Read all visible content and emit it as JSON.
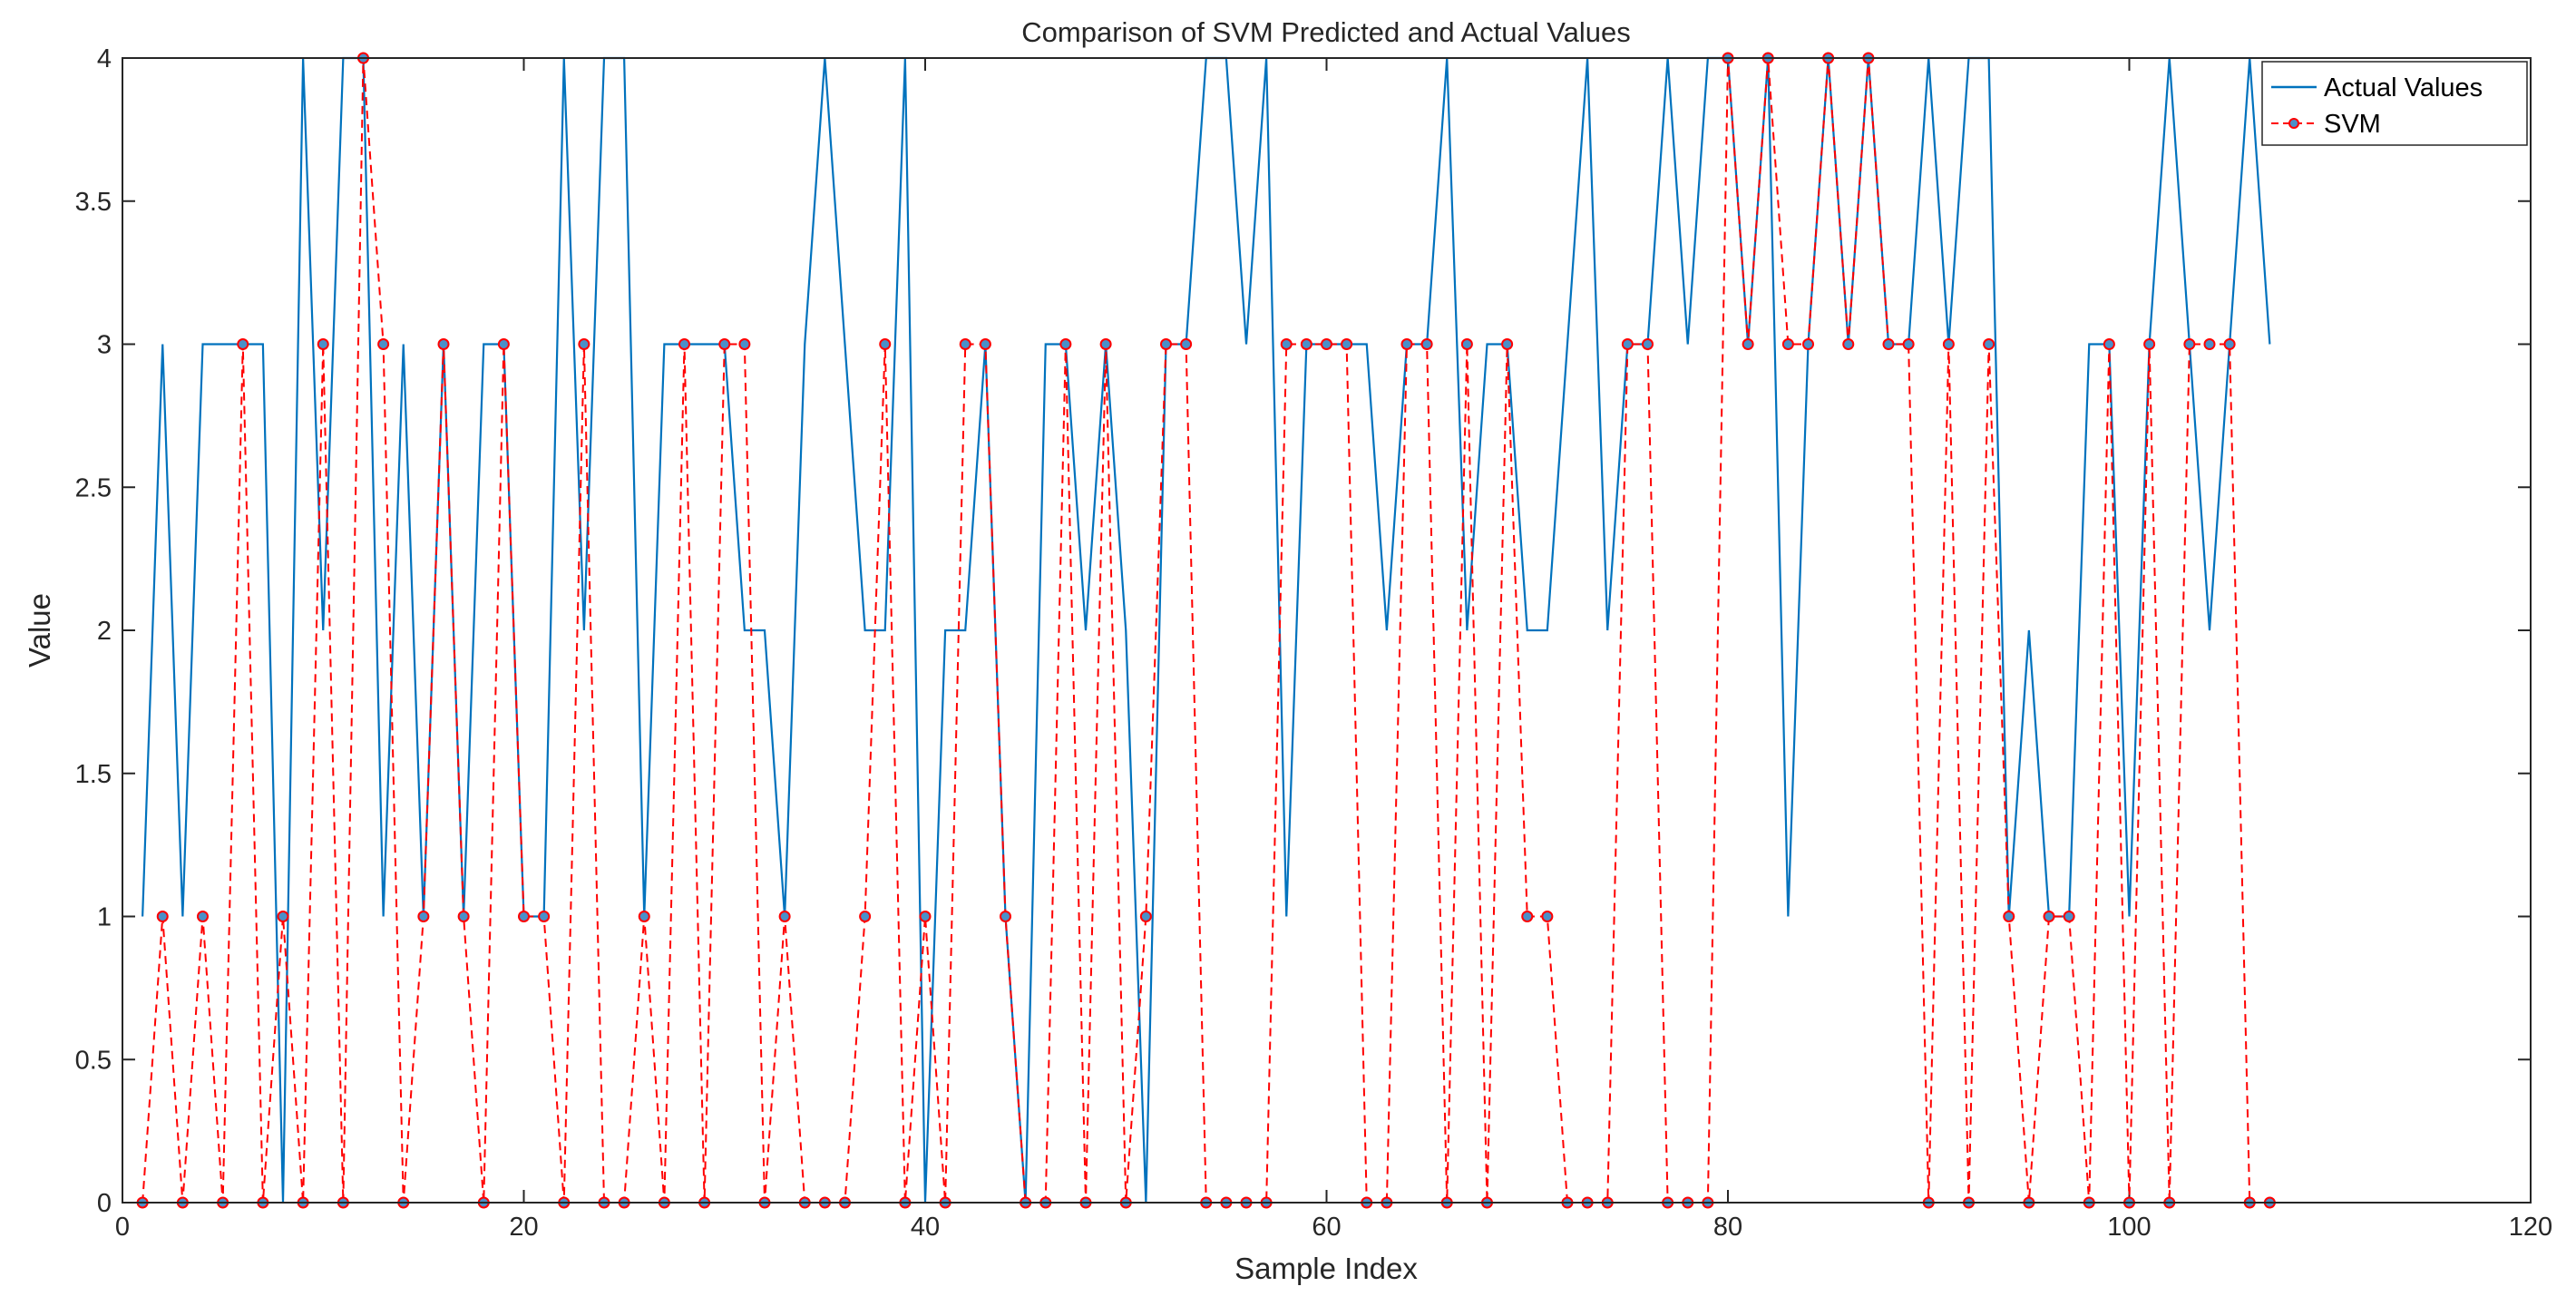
{
  "chart_data": {
    "type": "line",
    "title": "Comparison of SVM Predicted and Actual Values",
    "xlabel": "Sample Index",
    "ylabel": "Value",
    "xlim": [
      0,
      120
    ],
    "ylim": [
      0,
      4
    ],
    "x_ticks": [
      0,
      20,
      40,
      60,
      80,
      100,
      120
    ],
    "x_tick_labels": [
      "0",
      "20",
      "40",
      "60",
      "80",
      "100",
      "120"
    ],
    "y_ticks": [
      0,
      0.5,
      1,
      1.5,
      2,
      2.5,
      3,
      3.5,
      4
    ],
    "y_tick_labels": [
      "0",
      "0.5",
      "1",
      "1.5",
      "2",
      "2.5",
      "3",
      "3.5",
      "4"
    ],
    "legend_position": "top-right",
    "x": [
      1,
      2,
      3,
      4,
      5,
      6,
      7,
      8,
      9,
      10,
      11,
      12,
      13,
      14,
      15,
      16,
      17,
      18,
      19,
      20,
      21,
      22,
      23,
      24,
      25,
      26,
      27,
      28,
      29,
      30,
      31,
      32,
      33,
      34,
      35,
      36,
      37,
      38,
      39,
      40,
      41,
      42,
      43,
      44,
      45,
      46,
      47,
      48,
      49,
      50,
      51,
      52,
      53,
      54,
      55,
      56,
      57,
      58,
      59,
      60,
      61,
      62,
      63,
      64,
      65,
      66,
      67,
      68,
      69,
      70,
      71,
      72,
      73,
      74,
      75,
      76,
      77,
      78,
      79,
      80,
      81,
      82,
      83,
      84,
      85,
      86,
      87,
      88,
      89,
      90,
      91,
      92,
      93,
      94,
      95,
      96,
      97,
      98,
      99,
      100,
      101,
      102,
      103,
      104,
      105,
      106,
      107
    ],
    "series": [
      {
        "name": "Actual Values",
        "color": "#0072BD",
        "style": "solid",
        "values": [
          1,
          3,
          1,
          3,
          3,
          3,
          3,
          0,
          4,
          2,
          4,
          4,
          1,
          3,
          1,
          3,
          1,
          3,
          3,
          1,
          1,
          4,
          2,
          4,
          4,
          1,
          3,
          3,
          3,
          3,
          2,
          2,
          1,
          3,
          4,
          3,
          2,
          2,
          4,
          0,
          2,
          2,
          3,
          1,
          0,
          3,
          3,
          2,
          3,
          2,
          0,
          3,
          3,
          4,
          4,
          3,
          4,
          1,
          3,
          3,
          3,
          3,
          2,
          3,
          3,
          4,
          2,
          3,
          3,
          2,
          2,
          3,
          4,
          2,
          3,
          3,
          4,
          3,
          4,
          4,
          3,
          4,
          1,
          3,
          4,
          3,
          4,
          3,
          3,
          4,
          3,
          4,
          4,
          1,
          2,
          1,
          1,
          3,
          3,
          1,
          3,
          4,
          3,
          2,
          3,
          4,
          3
        ]
      },
      {
        "name": "SVM",
        "color": "#FF0000",
        "marker_color": "#4A90C8",
        "style": "dashed",
        "values": [
          0,
          1,
          0,
          1,
          0,
          3,
          0,
          1,
          0,
          3,
          0,
          4,
          3,
          0,
          1,
          3,
          1,
          0,
          3,
          1,
          1,
          0,
          3,
          0,
          0,
          1,
          0,
          3,
          0,
          3,
          3,
          0,
          1,
          0,
          0,
          0,
          1,
          3,
          0,
          1,
          0,
          3,
          3,
          1,
          0,
          0,
          3,
          0,
          3,
          0,
          1,
          3,
          3,
          0,
          0,
          0,
          0,
          3,
          3,
          3,
          3,
          0,
          0,
          3,
          3,
          0,
          3,
          0,
          3,
          1,
          1,
          0,
          0,
          0,
          3,
          3,
          0,
          0,
          0,
          4,
          3,
          4,
          3,
          3,
          4,
          3,
          4,
          3,
          3,
          0,
          3,
          0,
          3,
          1,
          0,
          1,
          1,
          0,
          3,
          0,
          3,
          0,
          3,
          3,
          3,
          0,
          0
        ]
      }
    ]
  }
}
